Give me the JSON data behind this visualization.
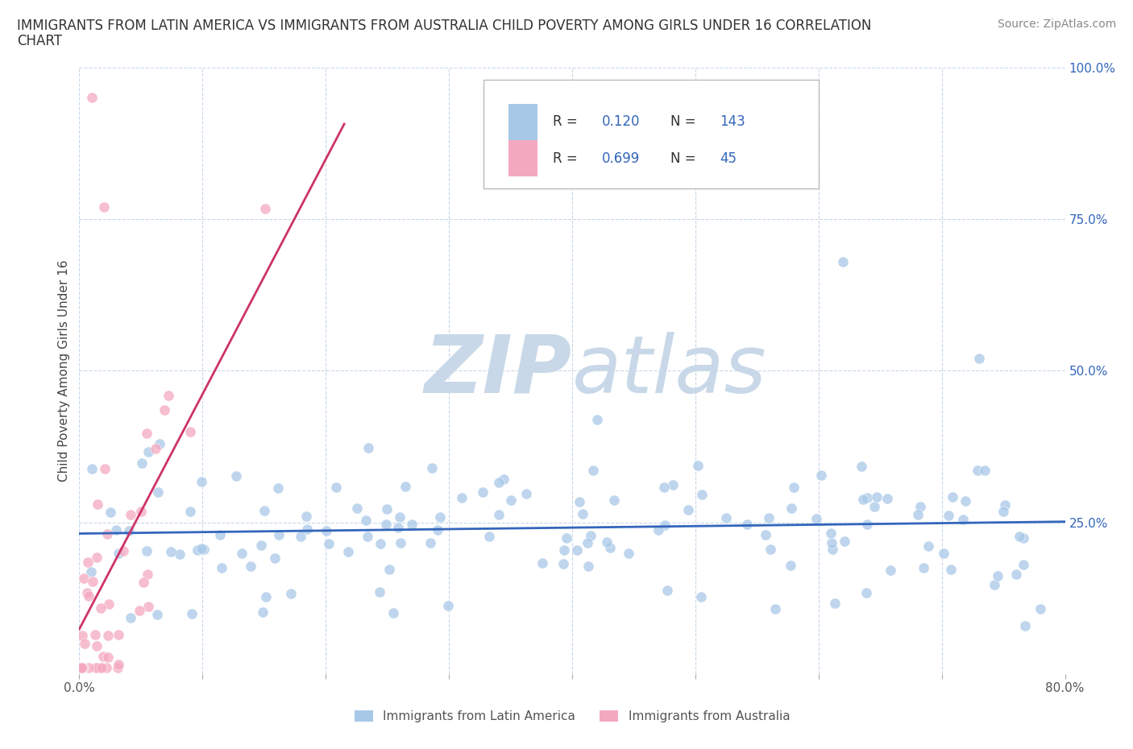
{
  "title_line1": "IMMIGRANTS FROM LATIN AMERICA VS IMMIGRANTS FROM AUSTRALIA CHILD POVERTY AMONG GIRLS UNDER 16 CORRELATION",
  "title_line2": "CHART",
  "source": "Source: ZipAtlas.com",
  "ylabel": "Child Poverty Among Girls Under 16",
  "xlim": [
    0.0,
    0.8
  ],
  "ylim": [
    0.0,
    1.0
  ],
  "xticks": [
    0.0,
    0.1,
    0.2,
    0.3,
    0.4,
    0.5,
    0.6,
    0.7,
    0.8
  ],
  "yticks": [
    0.0,
    0.25,
    0.5,
    0.75,
    1.0
  ],
  "legend_labels": [
    "Immigrants from Latin America",
    "Immigrants from Australia"
  ],
  "legend_r": [
    0.12,
    0.699
  ],
  "legend_n": [
    143,
    45
  ],
  "blue_color": "#a8c8e8",
  "pink_color": "#f4a8c0",
  "blue_line_color": "#3366bb",
  "pink_line_color": "#cc3366",
  "blue_text_color": "#3366bb",
  "ytick_color": "#3366bb",
  "watermark_zip": "#c8d8e8",
  "watermark_atlas": "#c8d8e8",
  "grid_color": "#c8d8e8",
  "grid_style": "--",
  "title_fontsize": 12,
  "source_fontsize": 10,
  "tick_fontsize": 11,
  "legend_fontsize": 12
}
